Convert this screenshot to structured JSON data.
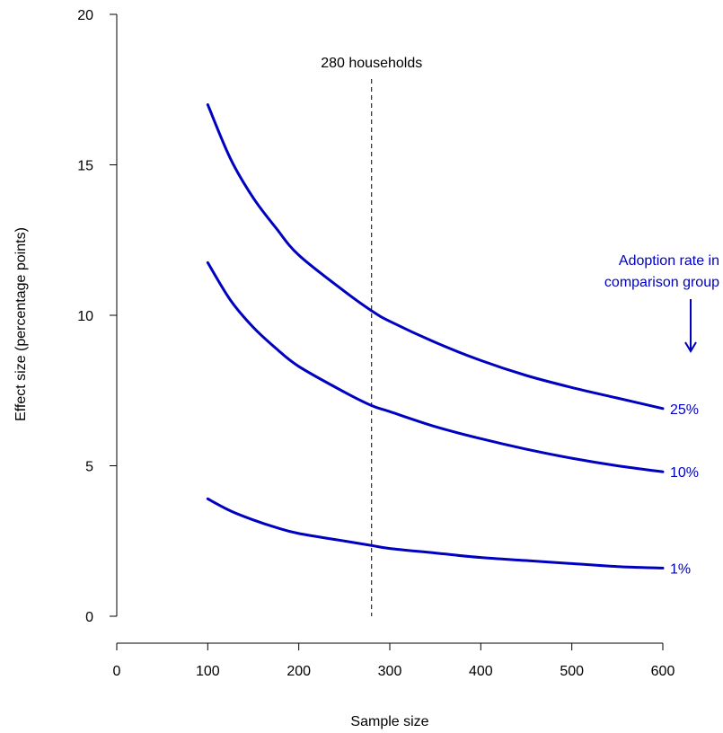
{
  "chart_data": {
    "type": "line",
    "title": "",
    "xlabel": "Sample size",
    "ylabel": "Effect size (percentage points)",
    "xlim": [
      0,
      600
    ],
    "ylim": [
      0,
      20
    ],
    "xticks": [
      0,
      100,
      200,
      300,
      400,
      500,
      600
    ],
    "yticks": [
      0,
      5,
      10,
      15,
      20
    ],
    "grid": false,
    "x": [
      100,
      125,
      150,
      175,
      200,
      250,
      280,
      300,
      350,
      400,
      450,
      500,
      550,
      600
    ],
    "series": [
      {
        "name": "25%",
        "values": [
          17.0,
          15.2,
          13.9,
          12.9,
          12.0,
          10.8,
          10.15,
          9.8,
          9.1,
          8.5,
          8.0,
          7.6,
          7.25,
          6.9
        ]
      },
      {
        "name": "10%",
        "values": [
          11.75,
          10.5,
          9.6,
          8.9,
          8.3,
          7.45,
          7.0,
          6.8,
          6.3,
          5.9,
          5.55,
          5.25,
          5.0,
          4.8
        ]
      },
      {
        "name": "1%",
        "values": [
          3.9,
          3.5,
          3.2,
          2.95,
          2.75,
          2.5,
          2.35,
          2.25,
          2.1,
          1.95,
          1.85,
          1.75,
          1.65,
          1.6
        ]
      }
    ],
    "reference_line": {
      "x": 280,
      "label": "280 households"
    },
    "legend": {
      "title_line1": "Adoption rate in",
      "title_line2": "comparison group",
      "position": "right",
      "arrow": "down-arrow"
    },
    "color": "#0000c0"
  }
}
